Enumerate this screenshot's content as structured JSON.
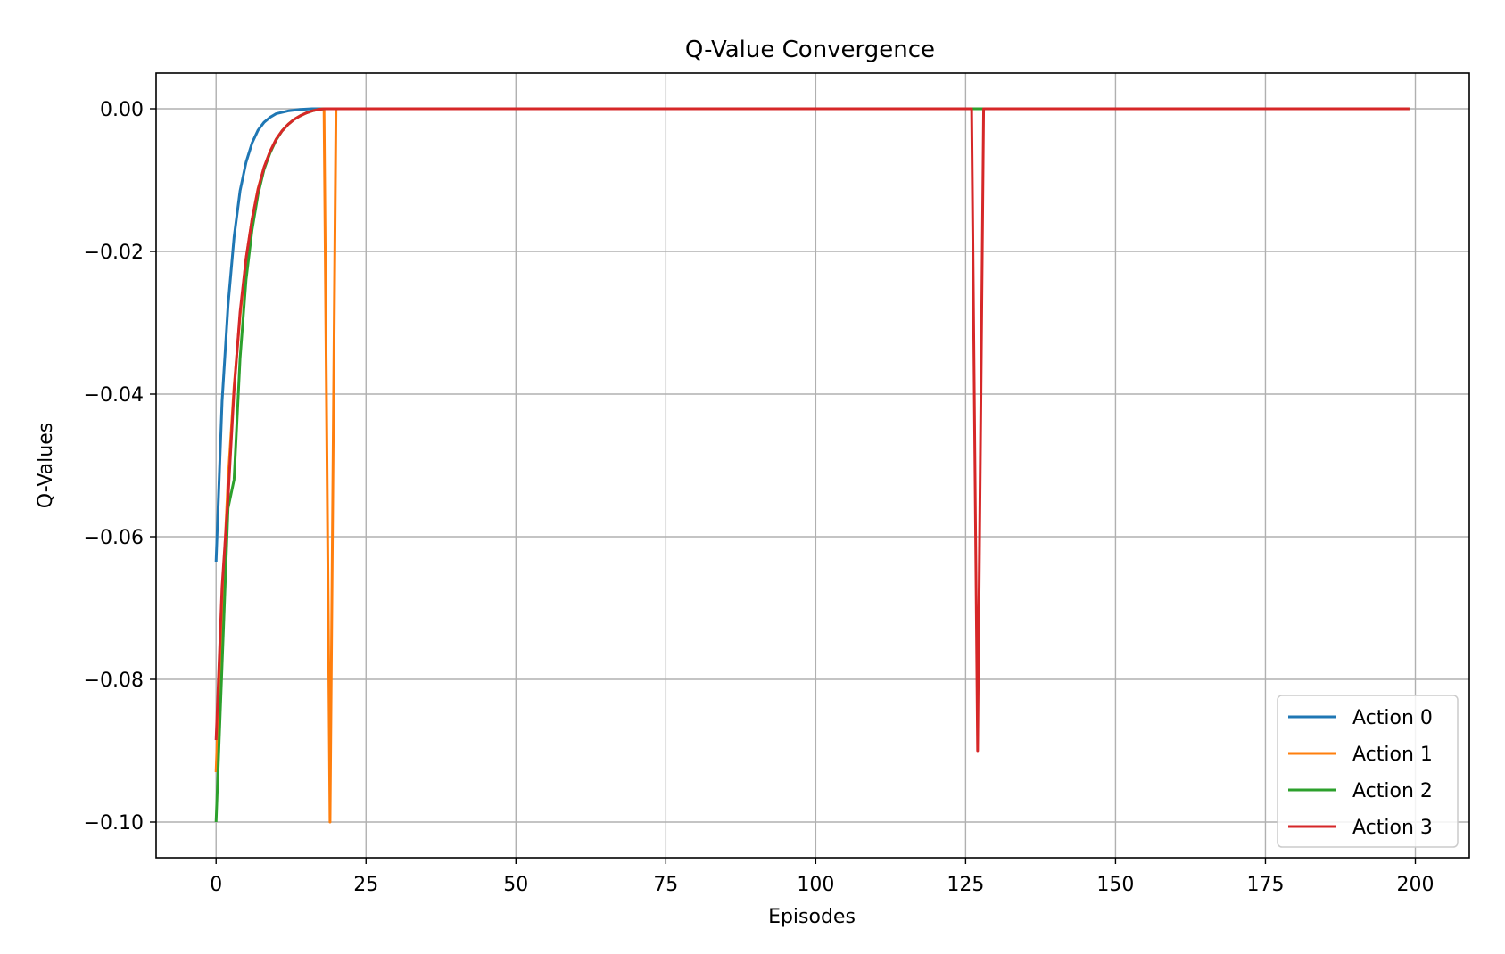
{
  "chart_data": {
    "type": "line",
    "title": "Q-Value Convergence",
    "xlabel": "Episodes",
    "ylabel": "Q-Values",
    "xlim": [
      -10,
      209
    ],
    "ylim": [
      -0.105,
      0.005
    ],
    "xticks": [
      0,
      25,
      50,
      75,
      100,
      125,
      150,
      175,
      200
    ],
    "xtick_labels": [
      "0",
      "25",
      "50",
      "75",
      "100",
      "125",
      "150",
      "175",
      "200"
    ],
    "yticks": [
      0.0,
      -0.02,
      -0.04,
      -0.06,
      -0.08,
      -0.1
    ],
    "ytick_labels": [
      "0.00",
      "−0.02",
      "−0.04",
      "−0.06",
      "−0.08",
      "−0.10"
    ],
    "grid": true,
    "legend_position": "lower-right",
    "series": [
      {
        "name": "Action 0",
        "color": "#1f77b4",
        "x": [
          0,
          1,
          2,
          3,
          4,
          5,
          6,
          7,
          8,
          9,
          10,
          12,
          14,
          16,
          18,
          20,
          199
        ],
        "y": [
          -0.0635,
          -0.041,
          -0.0275,
          -0.018,
          -0.0115,
          -0.0075,
          -0.0048,
          -0.003,
          -0.0019,
          -0.0012,
          -0.0007,
          -0.0003,
          -0.0001,
          0.0,
          0.0,
          0.0,
          0.0
        ]
      },
      {
        "name": "Action 1",
        "color": "#ff7f0e",
        "x": [
          0,
          1,
          2,
          3,
          4,
          5,
          6,
          7,
          8,
          9,
          10,
          11,
          12,
          13,
          14,
          15,
          16,
          17,
          18,
          19,
          20,
          199
        ],
        "y": [
          -0.093,
          -0.07,
          -0.052,
          -0.039,
          -0.029,
          -0.021,
          -0.0155,
          -0.0112,
          -0.0082,
          -0.006,
          -0.0043,
          -0.0031,
          -0.0022,
          -0.0015,
          -0.001,
          -0.0006,
          -0.0003,
          -0.0001,
          0.0,
          -0.1,
          0.0,
          0.0
        ]
      },
      {
        "name": "Action 2",
        "color": "#2ca02c",
        "x": [
          0,
          1,
          2,
          3,
          4,
          5,
          6,
          7,
          8,
          9,
          10,
          11,
          12,
          13,
          14,
          15,
          16,
          17,
          18,
          20,
          199
        ],
        "y": [
          -0.1,
          -0.078,
          -0.056,
          -0.052,
          -0.035,
          -0.024,
          -0.017,
          -0.012,
          -0.0085,
          -0.0062,
          -0.0044,
          -0.0031,
          -0.0022,
          -0.0015,
          -0.001,
          -0.0006,
          -0.0003,
          -0.0001,
          0.0,
          0.0,
          0.0
        ]
      },
      {
        "name": "Action 3",
        "color": "#d62728",
        "x": [
          0,
          1,
          2,
          3,
          4,
          5,
          6,
          7,
          8,
          9,
          10,
          11,
          12,
          13,
          14,
          15,
          16,
          17,
          18,
          20,
          126,
          127,
          128,
          199
        ],
        "y": [
          -0.0885,
          -0.067,
          -0.0545,
          -0.0395,
          -0.0285,
          -0.021,
          -0.0155,
          -0.0113,
          -0.0082,
          -0.006,
          -0.0043,
          -0.0031,
          -0.0022,
          -0.0015,
          -0.001,
          -0.0006,
          -0.0003,
          -0.0001,
          0.0,
          0.0,
          0.0,
          -0.09,
          0.0,
          0.0
        ]
      }
    ]
  }
}
